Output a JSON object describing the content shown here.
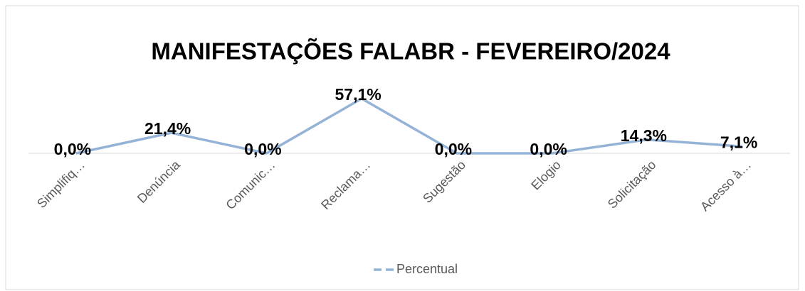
{
  "chart_data": {
    "type": "line",
    "title": "MANIFESTAÇÕES FALABR - FEVEREIRO/2024",
    "categories": [
      "Simplifiq…",
      "Denúncia",
      "Comunic…",
      "Reclama…",
      "Sugestão",
      "Elogio",
      "Solicitação",
      "Acesso à…"
    ],
    "series": [
      {
        "name": "Percentual",
        "color": "#95b3d7",
        "values": [
          0,
          21.4,
          0,
          57.1,
          0,
          0,
          14.3,
          7.1
        ],
        "value_labels": [
          "0,0%",
          "21,4%",
          "0,0%",
          "57,1%",
          "0,0%",
          "0,0%",
          "14,3%",
          "7,1%"
        ]
      }
    ],
    "ylim": [
      0,
      60
    ],
    "legend": "bottom"
  }
}
